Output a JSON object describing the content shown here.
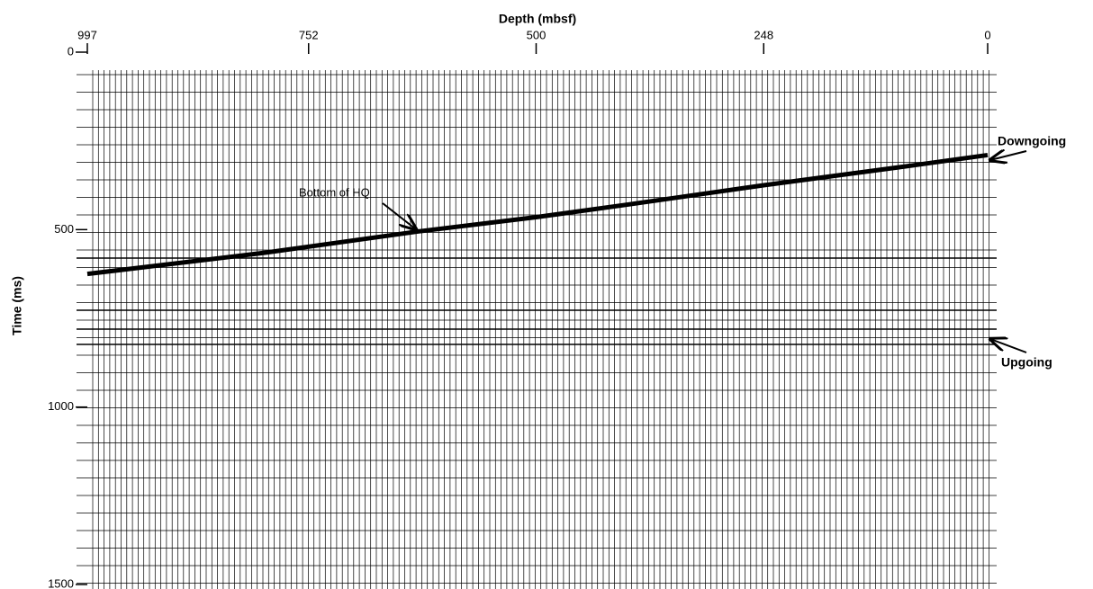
{
  "chart_data": {
    "type": "line",
    "x_label": "Depth (mbsf)",
    "y_label": "Time (ms)",
    "x": [
      0,
      100,
      248,
      400,
      500,
      630,
      800,
      997
    ],
    "series": [
      {
        "color": "#000000",
        "values": [
          290,
          325,
          375,
          430,
          465,
          505,
          565,
          625
        ]
      }
    ],
    "xlim": [
      997,
      0
    ],
    "xticks": [
      997,
      752,
      500,
      248,
      0
    ],
    "ylim": [
      0,
      1500
    ],
    "yticks": [
      0,
      500,
      1000,
      1500
    ],
    "annotations": [
      "Bottom of HQ",
      "Downgoing",
      "Upgoing"
    ]
  }
}
